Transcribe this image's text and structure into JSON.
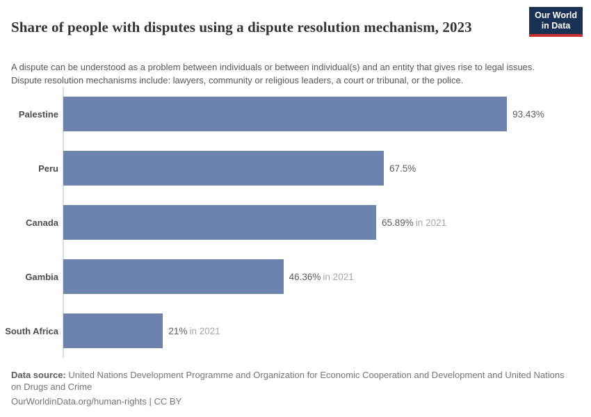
{
  "header": {
    "title": "Share of people with disputes using a dispute resolution mechanism, 2023",
    "subtitle": "A dispute can be understood as a problem between individuals or between individual(s) and an entity that gives rise to legal issues. Dispute resolution mechanisms include: lawyers, community or religious leaders, a court or tribunal, or the police.",
    "logo": {
      "line1": "Our World",
      "line2": "in Data"
    }
  },
  "colors": {
    "bar": "#6c83b0",
    "logo_bg": "#1a3156",
    "logo_accent": "#c9302c",
    "axis": "#dadde2"
  },
  "chart_data": {
    "type": "bar",
    "orientation": "horizontal",
    "title": "Share of people with disputes using a dispute resolution mechanism, 2023",
    "categories": [
      "Palestine",
      "Peru",
      "Canada",
      "Gambia",
      "South Africa"
    ],
    "values": [
      93.43,
      67.5,
      65.89,
      46.36,
      21
    ],
    "value_labels": [
      "93.43%",
      "67.5%",
      "65.89%",
      "46.36%",
      "21%"
    ],
    "time_notes": [
      "",
      "",
      "in 2021",
      "in 2021",
      "in 2021"
    ],
    "unit": "%",
    "xlim": [
      0,
      100
    ],
    "grid": false,
    "legend": false
  },
  "footer": {
    "source_label": "Data source:",
    "source_text": " United Nations Development Programme and Organization for Economic Cooperation and Development and United Nations on Drugs and Crime",
    "license_line": "OurWorldinData.org/human-rights | CC BY"
  }
}
